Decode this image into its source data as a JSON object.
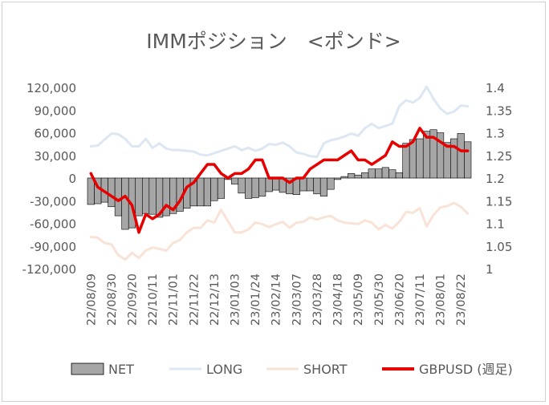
{
  "chart_data": {
    "type": "bar",
    "title": "IMMポジション　<ポンド>",
    "y_left_ticks": [
      "120,000",
      "90,000",
      "60,000",
      "30,000",
      "0",
      "-30,000",
      "-60,000",
      "-90,000",
      "-120,000"
    ],
    "y_left_range": [
      -120000,
      120000
    ],
    "y_right_ticks": [
      "1.4",
      "1.35",
      "1.3",
      "1.25",
      "1.2",
      "1.15",
      "1.1",
      "1.05",
      "1"
    ],
    "y_right_range": [
      1.0,
      1.4
    ],
    "x_tick_labels": [
      "22/08/09",
      "22/08/30",
      "22/09/20",
      "22/10/11",
      "22/11/01",
      "22/11/22",
      "22/12/13",
      "23/01/03",
      "23/01/24",
      "23/02/14",
      "23/03/07",
      "23/03/28",
      "23/04/18",
      "23/05/09",
      "23/05/30",
      "23/06/20",
      "23/07/11",
      "23/08/01",
      "23/08/22"
    ],
    "x": [
      "22/08/09",
      "22/08/16",
      "22/08/23",
      "22/08/30",
      "22/09/06",
      "22/09/13",
      "22/09/20",
      "22/09/27",
      "22/10/04",
      "22/10/11",
      "22/10/18",
      "22/10/25",
      "22/11/01",
      "22/11/08",
      "22/11/15",
      "22/11/22",
      "22/11/29",
      "22/12/06",
      "22/12/13",
      "22/12/20",
      "22/12/27",
      "23/01/03",
      "23/01/10",
      "23/01/17",
      "23/01/24",
      "23/01/31",
      "23/02/07",
      "23/02/14",
      "23/02/21",
      "23/02/28",
      "23/03/07",
      "23/03/14",
      "23/03/21",
      "23/03/28",
      "23/04/04",
      "23/04/11",
      "23/04/18",
      "23/04/25",
      "23/05/02",
      "23/05/09",
      "23/05/16",
      "23/05/23",
      "23/05/30",
      "23/06/06",
      "23/06/13",
      "23/06/20",
      "23/06/27",
      "23/07/04",
      "23/07/11",
      "23/07/18",
      "23/07/25",
      "23/08/01",
      "23/08/08",
      "23/08/15",
      "23/08/22",
      "23/08/29"
    ],
    "series": [
      {
        "name": "NET",
        "kind": "bar",
        "axis": "left",
        "color": "#a6a6a6",
        "values": [
          -35000,
          -34000,
          -32000,
          -38000,
          -50000,
          -68000,
          -66000,
          -50000,
          -47000,
          -48000,
          -52000,
          -50000,
          -47000,
          -44000,
          -40000,
          -37000,
          -37000,
          -37000,
          -30000,
          -27000,
          -2000,
          -8000,
          -20000,
          -27000,
          -26000,
          -24000,
          -18000,
          -16000,
          -19000,
          -21000,
          -22000,
          -17000,
          -17000,
          -21000,
          -24000,
          -15000,
          -2000,
          2000,
          6000,
          4000,
          7000,
          12000,
          12000,
          14000,
          11000,
          7000,
          46000,
          51000,
          52000,
          62000,
          64000,
          60000,
          47000,
          52000,
          59000,
          48000
        ]
      },
      {
        "name": "LONG",
        "kind": "line",
        "axis": "left",
        "color": "#dde7f3",
        "values": [
          42000,
          43000,
          51000,
          59000,
          58000,
          52000,
          42000,
          42000,
          52000,
          40000,
          46000,
          39000,
          37000,
          37000,
          36000,
          35000,
          31000,
          30000,
          33000,
          36000,
          39000,
          42000,
          37000,
          40000,
          36000,
          39000,
          45000,
          44000,
          47000,
          42000,
          34000,
          32000,
          29000,
          28000,
          46000,
          50000,
          52000,
          55000,
          59000,
          56000,
          66000,
          72000,
          66000,
          69000,
          72000,
          95000,
          103000,
          100000,
          106000,
          121000,
          105000,
          92000,
          85000,
          88000,
          96000,
          95000
        ]
      },
      {
        "name": "SHORT",
        "kind": "line",
        "axis": "left",
        "color": "#f9e2d6",
        "values": [
          -78000,
          -79000,
          -86000,
          -88000,
          -102000,
          -108000,
          -99000,
          -106000,
          -96000,
          -92000,
          -94000,
          -96000,
          -86000,
          -82000,
          -72000,
          -66000,
          -66000,
          -56000,
          -59000,
          -42000,
          -57000,
          -72000,
          -72000,
          -68000,
          -59000,
          -61000,
          -65000,
          -61000,
          -58000,
          -66000,
          -59000,
          -58000,
          -52000,
          -55000,
          -52000,
          -50000,
          -56000,
          -59000,
          -60000,
          -61000,
          -56000,
          -59000,
          -68000,
          -62000,
          -67000,
          -58000,
          -45000,
          -46000,
          -40000,
          -64000,
          -49000,
          -39000,
          -37000,
          -33000,
          -38000,
          -47000
        ]
      },
      {
        "name": "GBPUSD (週足)",
        "kind": "line",
        "axis": "right",
        "color": "#e60000",
        "values": [
          1.21,
          1.18,
          1.17,
          1.16,
          1.15,
          1.16,
          1.14,
          1.08,
          1.12,
          1.11,
          1.12,
          1.14,
          1.13,
          1.15,
          1.18,
          1.19,
          1.21,
          1.23,
          1.23,
          1.21,
          1.2,
          1.21,
          1.21,
          1.22,
          1.24,
          1.24,
          1.2,
          1.2,
          1.2,
          1.19,
          1.2,
          1.2,
          1.22,
          1.23,
          1.24,
          1.24,
          1.24,
          1.25,
          1.26,
          1.24,
          1.24,
          1.23,
          1.24,
          1.25,
          1.28,
          1.27,
          1.27,
          1.28,
          1.31,
          1.29,
          1.29,
          1.28,
          1.27,
          1.27,
          1.26,
          1.26
        ]
      }
    ],
    "legend_position": "bottom",
    "legend": [
      {
        "label": "NET",
        "kind": "bar"
      },
      {
        "label": "LONG",
        "kind": "line"
      },
      {
        "label": "SHORT",
        "kind": "line"
      },
      {
        "label": "GBPUSD (週足)",
        "kind": "line"
      }
    ],
    "colors": {
      "net_fill": "#a6a6a6",
      "net_stroke": "#000000",
      "long": "#dde7f3",
      "short": "#f9e2d6",
      "gbpusd": "#e60000",
      "text": "#595959",
      "zero_line": "#bfbfbf"
    }
  }
}
